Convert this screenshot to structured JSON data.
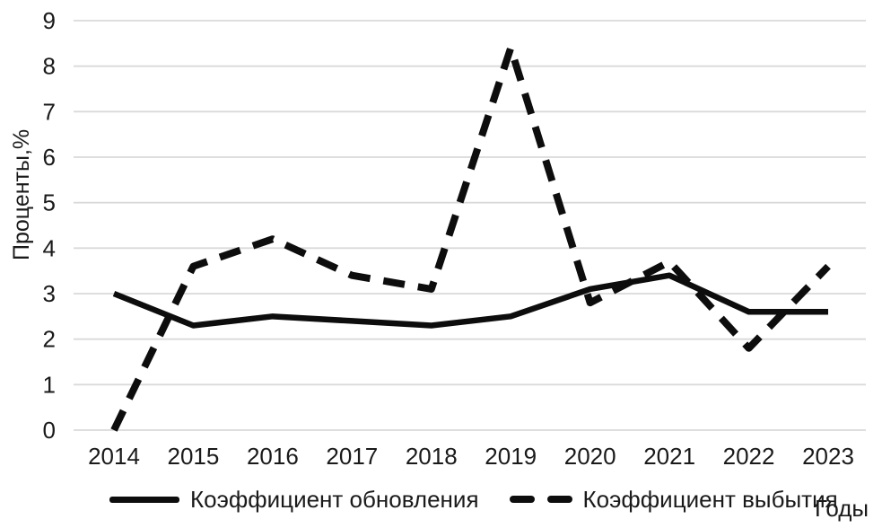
{
  "chart_data": {
    "type": "line",
    "title": "",
    "categories": [
      "2014",
      "2015",
      "2016",
      "2017",
      "2018",
      "2019",
      "2020",
      "2021",
      "2022",
      "2023"
    ],
    "series": [
      {
        "name": "Коэффициент обновления",
        "style": "solid",
        "color": "#0d0d0d",
        "values": [
          3.0,
          2.3,
          2.5,
          2.4,
          2.3,
          2.5,
          3.1,
          3.4,
          2.6,
          2.6
        ]
      },
      {
        "name": "Коэффициент выбытия",
        "style": "dashed",
        "color": "#0d0d0d",
        "values": [
          0.0,
          3.6,
          4.2,
          3.4,
          3.1,
          8.4,
          2.8,
          3.7,
          1.8,
          3.6
        ]
      }
    ],
    "xlabel": "Годы",
    "ylabel": "Проценты,%",
    "ylim": [
      0,
      9
    ],
    "ytick_step": 1,
    "yticks": [
      "0",
      "1",
      "2",
      "3",
      "4",
      "5",
      "6",
      "7",
      "8",
      "9"
    ],
    "grid": "horizontal",
    "gridline_color": "#d9d9d9",
    "text_color": "#1a1a1a",
    "legend_position": "bottom"
  }
}
